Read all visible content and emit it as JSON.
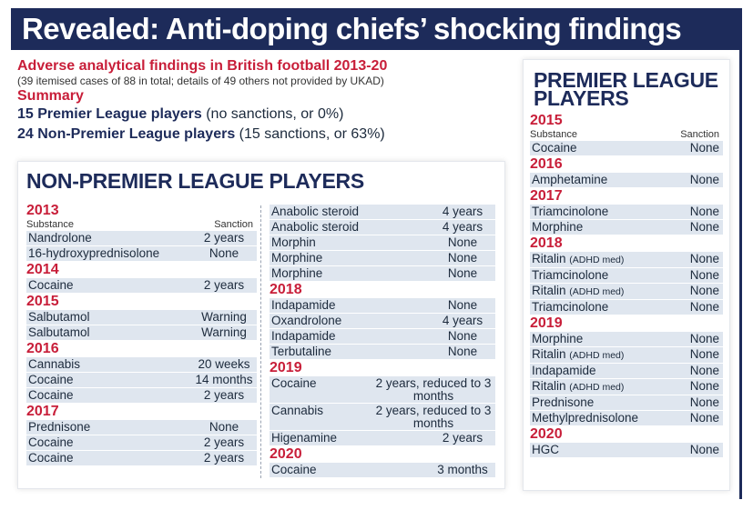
{
  "headline": "Revealed: Anti-doping chiefs’ shocking findings",
  "intro": {
    "title": "Adverse analytical findings in British football 2013-20",
    "subtitle": "(39 itemised cases of 88 in total; details of 49 others not provided by UKAD)",
    "summary_label": "Summary",
    "line1_bold": "15 Premier League players",
    "line1_rest": " (no sanctions, or 0%)",
    "line2_bold": "24 Non-Premier League players",
    "line2_rest": " (15 sanctions, or 63%)"
  },
  "non_premier": {
    "title": "NON-PREMIER LEAGUE PLAYERS",
    "col_substance": "Substance",
    "col_sanction": "Sanction",
    "col1": [
      {
        "year": "2013",
        "header": true,
        "rows": [
          {
            "substance": "Nandrolone",
            "sanction": "2 years"
          },
          {
            "substance": "16-hydroxyprednisolone",
            "sanction": "None"
          }
        ]
      },
      {
        "year": "2014",
        "rows": [
          {
            "substance": "Cocaine",
            "sanction": "2 years"
          }
        ]
      },
      {
        "year": "2015",
        "rows": [
          {
            "substance": "Salbutamol",
            "sanction": "Warning"
          },
          {
            "substance": "Salbutamol",
            "sanction": "Warning"
          }
        ]
      },
      {
        "year": "2016",
        "rows": [
          {
            "substance": "Cannabis",
            "sanction": "20 weeks"
          },
          {
            "substance": "Cocaine",
            "sanction": "14 months"
          },
          {
            "substance": "Cocaine",
            "sanction": "2 years"
          }
        ]
      },
      {
        "year": "2017",
        "rows": [
          {
            "substance": "Prednisone",
            "sanction": "None"
          },
          {
            "substance": "Cocaine",
            "sanction": "2 years"
          },
          {
            "substance": "Cocaine",
            "sanction": "2 years"
          }
        ]
      }
    ],
    "col2": [
      {
        "year": "",
        "rows": [
          {
            "substance": "Anabolic steroid",
            "sanction": "4 years"
          },
          {
            "substance": "Anabolic steroid",
            "sanction": "4 years"
          },
          {
            "substance": "Morphin",
            "sanction": "None"
          },
          {
            "substance": "Morphine",
            "sanction": "None"
          },
          {
            "substance": "Morphine",
            "sanction": "None"
          }
        ]
      },
      {
        "year": "2018",
        "rows": [
          {
            "substance": "Indapamide",
            "sanction": "None"
          },
          {
            "substance": "Oxandrolone",
            "sanction": "4 years"
          },
          {
            "substance": "Indapamide",
            "sanction": "None"
          },
          {
            "substance": "Terbutaline",
            "sanction": "None"
          }
        ]
      },
      {
        "year": "2019",
        "rows": [
          {
            "substance": "Cocaine",
            "sanction": "2 years, reduced to 3 months"
          },
          {
            "substance": "Cannabis",
            "sanction": "2 years, reduced to 3 months"
          },
          {
            "substance": "Higenamine",
            "sanction": "2 years"
          }
        ]
      },
      {
        "year": "2020",
        "rows": [
          {
            "substance": "Cocaine",
            "sanction": "3 months"
          }
        ]
      }
    ]
  },
  "premier": {
    "title": "PREMIER LEAGUE PLAYERS",
    "col_substance": "Substance",
    "col_sanction": "Sanction",
    "groups": [
      {
        "year": "2015",
        "header": true,
        "rows": [
          {
            "substance": "Cocaine",
            "sanction": "None"
          }
        ]
      },
      {
        "year": "2016",
        "rows": [
          {
            "substance": "Amphetamine",
            "sanction": "None"
          }
        ]
      },
      {
        "year": "2017",
        "rows": [
          {
            "substance": "Triamcinolone",
            "sanction": "None"
          },
          {
            "substance": "Morphine",
            "sanction": "None"
          }
        ]
      },
      {
        "year": "2018",
        "rows": [
          {
            "substance": "Ritalin",
            "note": "(ADHD med)",
            "sanction": "None"
          },
          {
            "substance": "Triamcinolone",
            "sanction": "None"
          },
          {
            "substance": "Ritalin",
            "note": "(ADHD med)",
            "sanction": "None"
          },
          {
            "substance": "Triamcinolone",
            "sanction": "None"
          }
        ]
      },
      {
        "year": "2019",
        "rows": [
          {
            "substance": "Morphine",
            "sanction": "None"
          },
          {
            "substance": "Ritalin",
            "note": "(ADHD med)",
            "sanction": "None"
          },
          {
            "substance": "Indapamide",
            "sanction": "None"
          },
          {
            "substance": "Ritalin",
            "note": "(ADHD med)",
            "sanction": "None"
          },
          {
            "substance": "Prednisone",
            "sanction": "None"
          },
          {
            "substance": "Methylprednisolone",
            "sanction": "None"
          }
        ]
      },
      {
        "year": "2020",
        "rows": [
          {
            "substance": "HGC",
            "sanction": "None"
          }
        ]
      }
    ]
  }
}
